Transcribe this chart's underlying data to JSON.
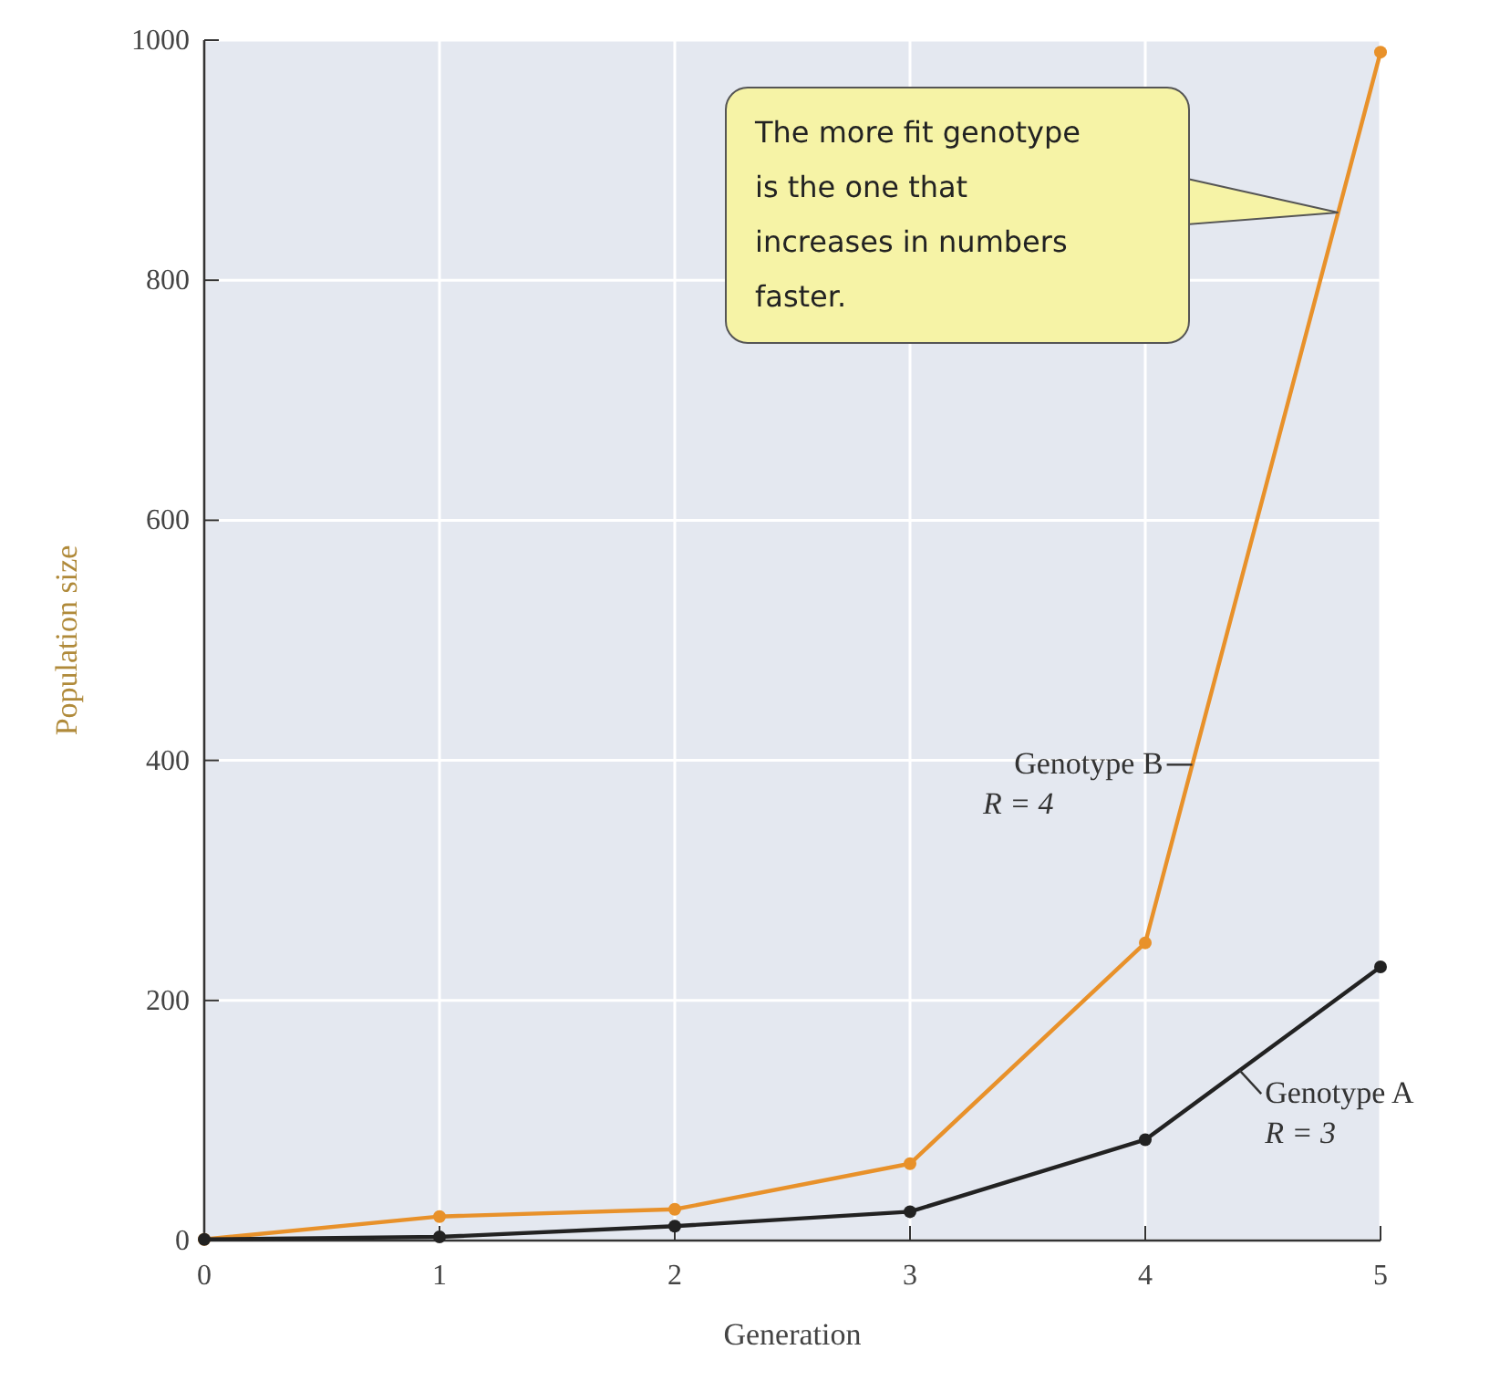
{
  "chart_data": {
    "type": "line",
    "xlabel": "Generation",
    "ylabel": "Population size",
    "x": [
      0,
      1,
      2,
      3,
      4,
      5
    ],
    "series": [
      {
        "name": "Genotype B",
        "color": "#e8912a",
        "values": [
          1,
          20,
          26,
          64,
          248,
          990
        ]
      },
      {
        "name": "Genotype A",
        "color": "#222222",
        "values": [
          1,
          3,
          12,
          24,
          84,
          228
        ]
      }
    ],
    "annotations": [
      "The more fit genotype is the one that increases in numbers faster.",
      "R = 4",
      {
        "text": "R = 3",
        "x": 4.4,
        "y": 142
      }
    ],
    "xlim": [
      0,
      5
    ],
    "xticks": [
      0,
      1,
      2,
      3,
      4,
      5
    ],
    "ylim": [
      0,
      1000
    ],
    "yticks": [
      0,
      200,
      400,
      600,
      800,
      1000
    ],
    "grid": true,
    "marker": "circle",
    "line_style": "solid",
    "legend": false
  }
}
